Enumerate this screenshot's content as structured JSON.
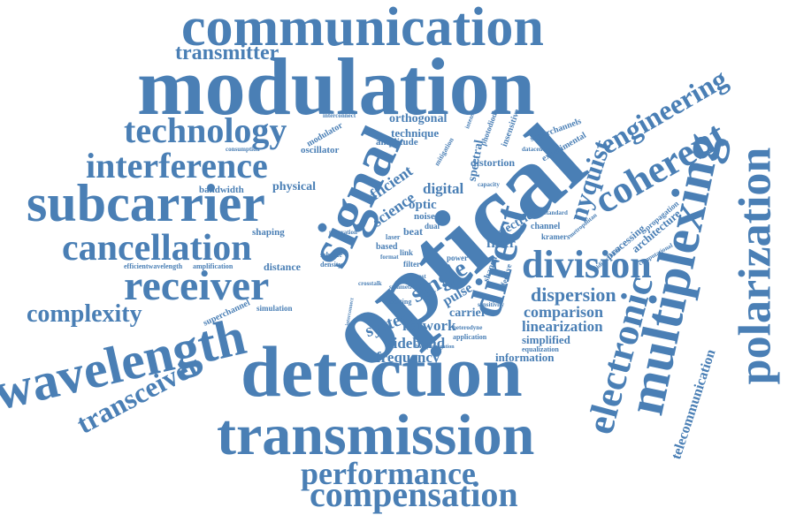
{
  "colors": {
    "word": "#4a7fb5",
    "background": "#ffffff"
  },
  "words": [
    "communication",
    "modulation",
    "transmitter",
    "optical",
    "detection",
    "transmission",
    "wavelength",
    "subcarrier",
    "interference",
    "technology",
    "cancellation",
    "receiver",
    "complexity",
    "transceiver",
    "performance",
    "compensation",
    "signal",
    "direct",
    "multiplexing",
    "polarization",
    "electronic",
    "coherent",
    "engineering",
    "division",
    "nyquist",
    "single",
    "dispersion",
    "comparison",
    "linearization",
    "simplified",
    "information",
    "frequency",
    "sideband",
    "network",
    "system",
    "carrier",
    "pulse",
    "fiber",
    "electrical",
    "digital",
    "science",
    "efficient",
    "optic",
    "orthogonal",
    "technique",
    "amplitude",
    "oscillator",
    "modulator",
    "physical",
    "bandwidth",
    "shaping",
    "distance",
    "simulation",
    "superchannel",
    "efficientwavelength",
    "amplification",
    "distortion",
    "spectral",
    "experimental",
    "superchannels",
    "telecommunication",
    "architecture",
    "processing",
    "propagation",
    "channel",
    "kramers",
    "beat",
    "noise",
    "dual",
    "link",
    "power",
    "based",
    "laser",
    "density",
    "scheme",
    "beating",
    "application",
    "equalization",
    "datacentre",
    "insensitive",
    "photodiode",
    "interconnect",
    "consumption",
    "computational",
    "bidirectional",
    "shaped",
    "effective",
    "mitigation",
    "capacity",
    "filter",
    "cost",
    "format",
    "heterodyne",
    "sensitivity",
    "standard",
    "symmetric",
    "metropolitan",
    "backpropagation",
    "crosstalk",
    "interconnect",
    "generation",
    "intensity"
  ]
}
